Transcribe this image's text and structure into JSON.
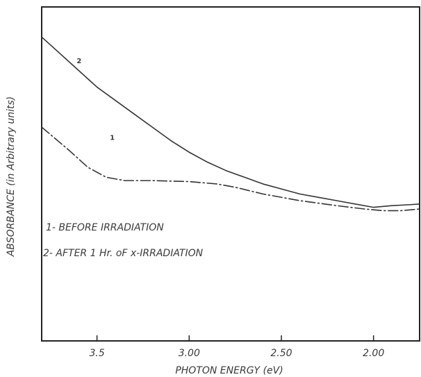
{
  "chart_data": {
    "type": "line",
    "xlabel": "PHOTON ENERGY (eV)",
    "ylabel": "ABSORBANCE (in Arbitrary units)",
    "x_reversed": true,
    "xlim": [
      3.8,
      1.75
    ],
    "ylim": [
      0,
      1
    ],
    "x_ticks": [
      3.5,
      3.0,
      2.5,
      2.0
    ],
    "x_tick_labels": [
      "3.5",
      "3.00",
      "2.50",
      "2.00"
    ],
    "grid": false,
    "y_tick_labels_shown": false,
    "legend": [
      "1- BEFORE IRRADIATION",
      "2- AFTER 1 Hr. oF x-IRRADIATION"
    ],
    "legend_position": "center-left",
    "series": [
      {
        "name": "1",
        "style": "dash-dot",
        "label": "1",
        "x": [
          3.8,
          3.65,
          3.55,
          3.45,
          3.35,
          3.2,
          3.0,
          2.85,
          2.75,
          2.6,
          2.4,
          2.2,
          2.05,
          1.95,
          1.85,
          1.75
        ],
        "y": [
          0.64,
          0.57,
          0.52,
          0.49,
          0.48,
          0.48,
          0.477,
          0.47,
          0.46,
          0.44,
          0.42,
          0.405,
          0.395,
          0.39,
          0.39,
          0.395
        ]
      },
      {
        "name": "2",
        "style": "solid",
        "label": "2",
        "x": [
          3.8,
          3.7,
          3.6,
          3.5,
          3.4,
          3.3,
          3.2,
          3.1,
          3.0,
          2.9,
          2.8,
          2.7,
          2.6,
          2.5,
          2.4,
          2.3,
          2.2,
          2.1,
          2.0,
          1.9,
          1.8,
          1.75
        ],
        "y": [
          0.91,
          0.86,
          0.81,
          0.76,
          0.72,
          0.68,
          0.64,
          0.6,
          0.565,
          0.535,
          0.51,
          0.49,
          0.47,
          0.455,
          0.44,
          0.43,
          0.42,
          0.41,
          0.4,
          0.405,
          0.408,
          0.41
        ]
      }
    ]
  }
}
